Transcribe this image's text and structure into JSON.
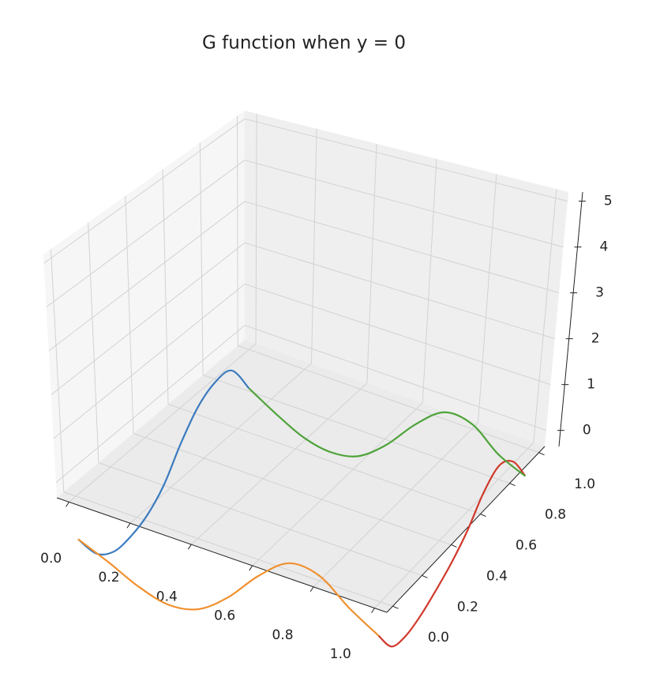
{
  "chart_data": {
    "type": "line3d",
    "title": "G function when y = 0",
    "xlim": [
      -0.04,
      1.04
    ],
    "ylim": [
      -0.04,
      1.04
    ],
    "zlim": [
      -0.35,
      5.2
    ],
    "xticks": [
      {
        "value": 0,
        "label": "0.0"
      },
      0.2,
      0.4,
      0.6,
      0.8,
      {
        "value": 1,
        "label": "1.0"
      }
    ],
    "yticks": [
      {
        "value": 0,
        "label": "0.0"
      },
      0.2,
      0.4,
      0.6,
      0.8,
      {
        "value": 1,
        "label": "1.0"
      }
    ],
    "zticks": [
      0,
      1,
      2,
      3,
      4,
      5
    ],
    "grid": true,
    "series": [
      {
        "color": "#3b7bbf",
        "x": [
          0,
          0,
          0,
          0,
          0,
          0,
          0,
          0,
          0,
          0,
          0
        ],
        "y": [
          0,
          0.1,
          0.2,
          0.3,
          0.4,
          0.5,
          0.6,
          0.7,
          0.8,
          0.9,
          1
        ],
        "z": [
          -1.33,
          -2.0,
          -2.3,
          -2.3,
          -2.15,
          -1.8,
          -1.2,
          -0.7,
          -0.45,
          -0.5,
          -1.28
        ]
      },
      {
        "color": "#f0902f",
        "x": [
          0,
          0.1,
          0.2,
          0.3,
          0.4,
          0.5,
          0.6,
          0.7,
          0.8,
          0.9,
          1
        ],
        "y": [
          0,
          0,
          0,
          0,
          0,
          0,
          0,
          0,
          0,
          0,
          0
        ],
        "z": [
          -1.33,
          -1.6,
          -1.9,
          -2.05,
          -1.9,
          -1.4,
          -0.7,
          -0.2,
          -0.25,
          -0.7,
          -1.05
        ]
      },
      {
        "color": "#d0392b",
        "x": [
          1,
          1,
          1,
          1,
          1,
          1,
          1,
          1,
          1,
          1,
          1
        ],
        "y": [
          0,
          0.1,
          0.2,
          0.3,
          0.4,
          0.5,
          0.6,
          0.7,
          0.8,
          0.9,
          1
        ],
        "z": [
          -1.05,
          -1.6,
          -1.7,
          -1.6,
          -1.4,
          -1.15,
          -0.8,
          -0.3,
          -0.05,
          -0.3,
          -0.95
        ]
      },
      {
        "color": "#4fa33b",
        "x": [
          0,
          0.1,
          0.2,
          0.3,
          0.4,
          0.5,
          0.6,
          0.7,
          0.8,
          0.9,
          1
        ],
        "y": [
          1,
          1,
          1,
          1,
          1,
          1,
          1,
          1,
          1,
          1,
          1
        ],
        "z": [
          -1.28,
          -1.65,
          -1.95,
          -2.05,
          -1.9,
          -1.4,
          -0.7,
          -0.2,
          -0.25,
          -0.7,
          -0.95
        ]
      }
    ]
  }
}
